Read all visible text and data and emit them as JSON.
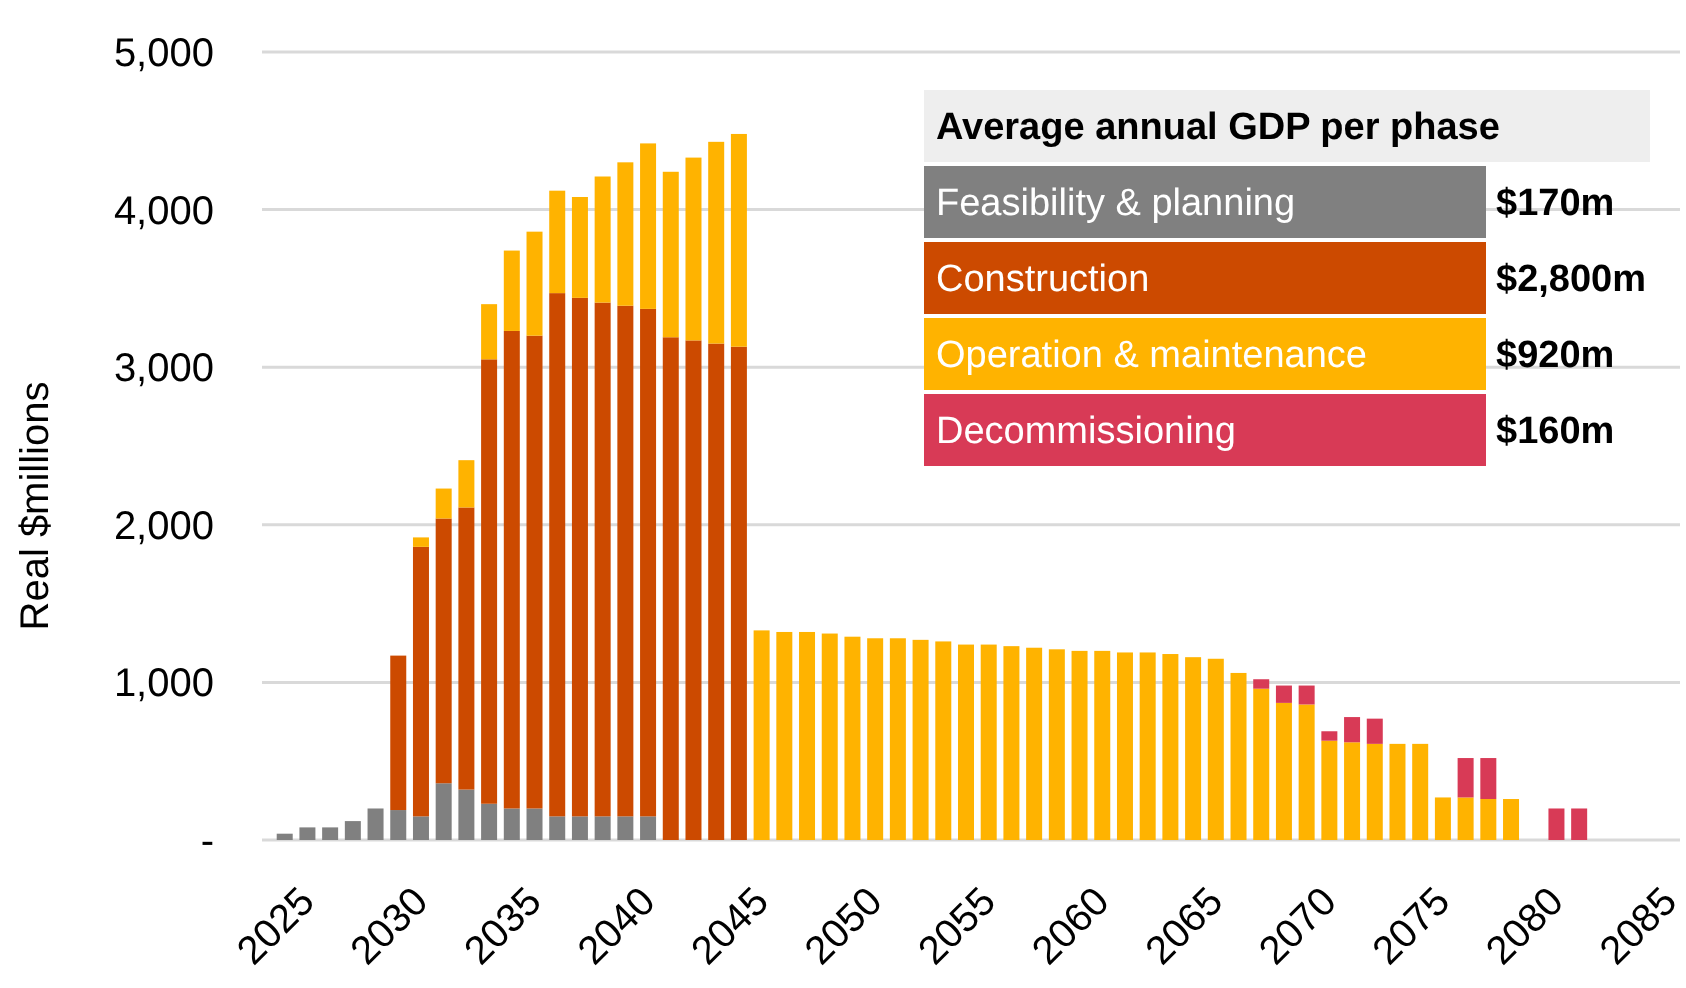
{
  "chart_data": {
    "type": "bar",
    "stacked": true,
    "ylabel": "Real $millions",
    "legend_title": "Average annual GDP per phase",
    "legend": "top right",
    "grid": "y",
    "x": [
      2025,
      2026,
      2027,
      2028,
      2029,
      2030,
      2031,
      2032,
      2033,
      2034,
      2035,
      2036,
      2037,
      2038,
      2039,
      2040,
      2041,
      2042,
      2043,
      2044,
      2045,
      2046,
      2047,
      2048,
      2049,
      2050,
      2051,
      2052,
      2053,
      2054,
      2055,
      2056,
      2057,
      2058,
      2059,
      2060,
      2061,
      2062,
      2063,
      2064,
      2065,
      2066,
      2067,
      2068,
      2069,
      2070,
      2071,
      2072,
      2073,
      2074,
      2075,
      2076,
      2077,
      2078,
      2079,
      2080,
      2081,
      2082
    ],
    "series": [
      {
        "name": "Feasibility & planning",
        "color": "#808080",
        "values": [
          40,
          80,
          80,
          120,
          200,
          190,
          150,
          360,
          320,
          230,
          200,
          200,
          150,
          150,
          150,
          150,
          150,
          null,
          null,
          null,
          null,
          null,
          null,
          null,
          null,
          null,
          null,
          null,
          null,
          null,
          null,
          null,
          null,
          null,
          null,
          null,
          null,
          null,
          null,
          null,
          null,
          null,
          null,
          null,
          null,
          null,
          null,
          null,
          null,
          null,
          null,
          null,
          null,
          null,
          null,
          null,
          null,
          null
        ]
      },
      {
        "name": "Construction",
        "color": "#cc4a00",
        "values": [
          null,
          null,
          null,
          null,
          null,
          980,
          1710,
          1680,
          1790,
          2820,
          3030,
          3000,
          3320,
          3290,
          3260,
          3240,
          3220,
          3190,
          3170,
          3150,
          3130,
          null,
          null,
          null,
          null,
          null,
          null,
          null,
          null,
          null,
          null,
          null,
          null,
          null,
          null,
          null,
          null,
          null,
          null,
          null,
          null,
          null,
          null,
          null,
          null,
          null,
          null,
          null,
          null,
          null,
          null,
          null,
          null,
          null,
          null,
          null,
          null,
          null
        ]
      },
      {
        "name": "Operation & maintenance",
        "color": "#ffb300",
        "values": [
          null,
          null,
          null,
          null,
          null,
          null,
          60,
          190,
          300,
          350,
          510,
          660,
          650,
          640,
          800,
          910,
          1050,
          1050,
          1160,
          1280,
          1350,
          1330,
          1320,
          1320,
          1310,
          1290,
          1280,
          1280,
          1270,
          1260,
          1240,
          1240,
          1230,
          1220,
          1210,
          1200,
          1200,
          1190,
          1190,
          1180,
          1160,
          1150,
          1060,
          960,
          870,
          860,
          630,
          620,
          610,
          610,
          610,
          270,
          270,
          260,
          260,
          null,
          null,
          null
        ]
      },
      {
        "name": "Decommissioning",
        "color": "#d83a56",
        "values": [
          null,
          null,
          null,
          null,
          null,
          null,
          null,
          null,
          null,
          null,
          null,
          null,
          null,
          null,
          null,
          null,
          null,
          null,
          null,
          null,
          null,
          null,
          null,
          null,
          null,
          null,
          null,
          null,
          null,
          null,
          null,
          null,
          null,
          null,
          null,
          null,
          null,
          null,
          null,
          null,
          null,
          null,
          null,
          60,
          110,
          120,
          60,
          160,
          160,
          null,
          null,
          null,
          250,
          260,
          null,
          null,
          200,
          200
        ]
      }
    ],
    "annotations": [
      "$170m",
      "$2,800m",
      "$920m",
      "$160m"
    ],
    "xlim": [
      2024,
      2086
    ],
    "xticks": [
      2025,
      2030,
      2035,
      2040,
      2045,
      2050,
      2055,
      2060,
      2065,
      2070,
      2075,
      2080,
      2085
    ],
    "ylim": [
      0,
      5000
    ],
    "yticks": [
      {
        "value": 0,
        "label": "-"
      },
      {
        "value": 1000,
        "label": "1,000"
      },
      {
        "value": 2000,
        "label": "2,000"
      },
      {
        "value": 3000,
        "label": "3,000"
      },
      {
        "value": 4000,
        "label": "4,000"
      },
      {
        "value": 5000,
        "label": "5,000"
      }
    ]
  }
}
